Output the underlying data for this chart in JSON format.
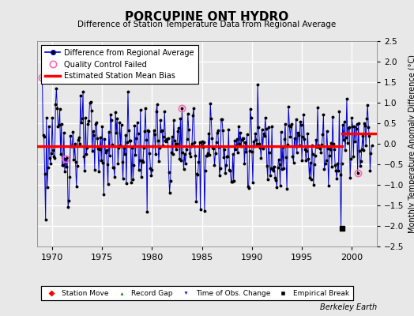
{
  "title": "PORCUPINE ONT HYDRO",
  "subtitle": "Difference of Station Temperature Data from Regional Average",
  "ylabel": "Monthly Temperature Anomaly Difference (°C)",
  "xlabel_years": [
    1970,
    1975,
    1980,
    1985,
    1990,
    1995,
    2000
  ],
  "xlim": [
    1968.5,
    2002.5
  ],
  "ylim": [
    -2.5,
    2.5
  ],
  "bias_level1": -0.05,
  "bias_x_end1": 1999.0,
  "bias_level2": 0.25,
  "bias_x_start2": 1999.0,
  "background_color": "#e8e8e8",
  "plot_bg_color": "#e8e8e8",
  "grid_color": "#ffffff",
  "line_color": "#0000cc",
  "dot_color": "#000000",
  "bias_color": "#ff0000",
  "qc_color": "#ff69b4",
  "empirical_break_x": 1999.0,
  "empirical_break_y": -2.05,
  "qc_failed_points": [
    [
      1969.0,
      1.62
    ],
    [
      1971.3,
      -0.37
    ],
    [
      1983.0,
      0.87
    ],
    [
      2000.6,
      -0.72
    ]
  ],
  "watermark": "Berkeley Earth"
}
